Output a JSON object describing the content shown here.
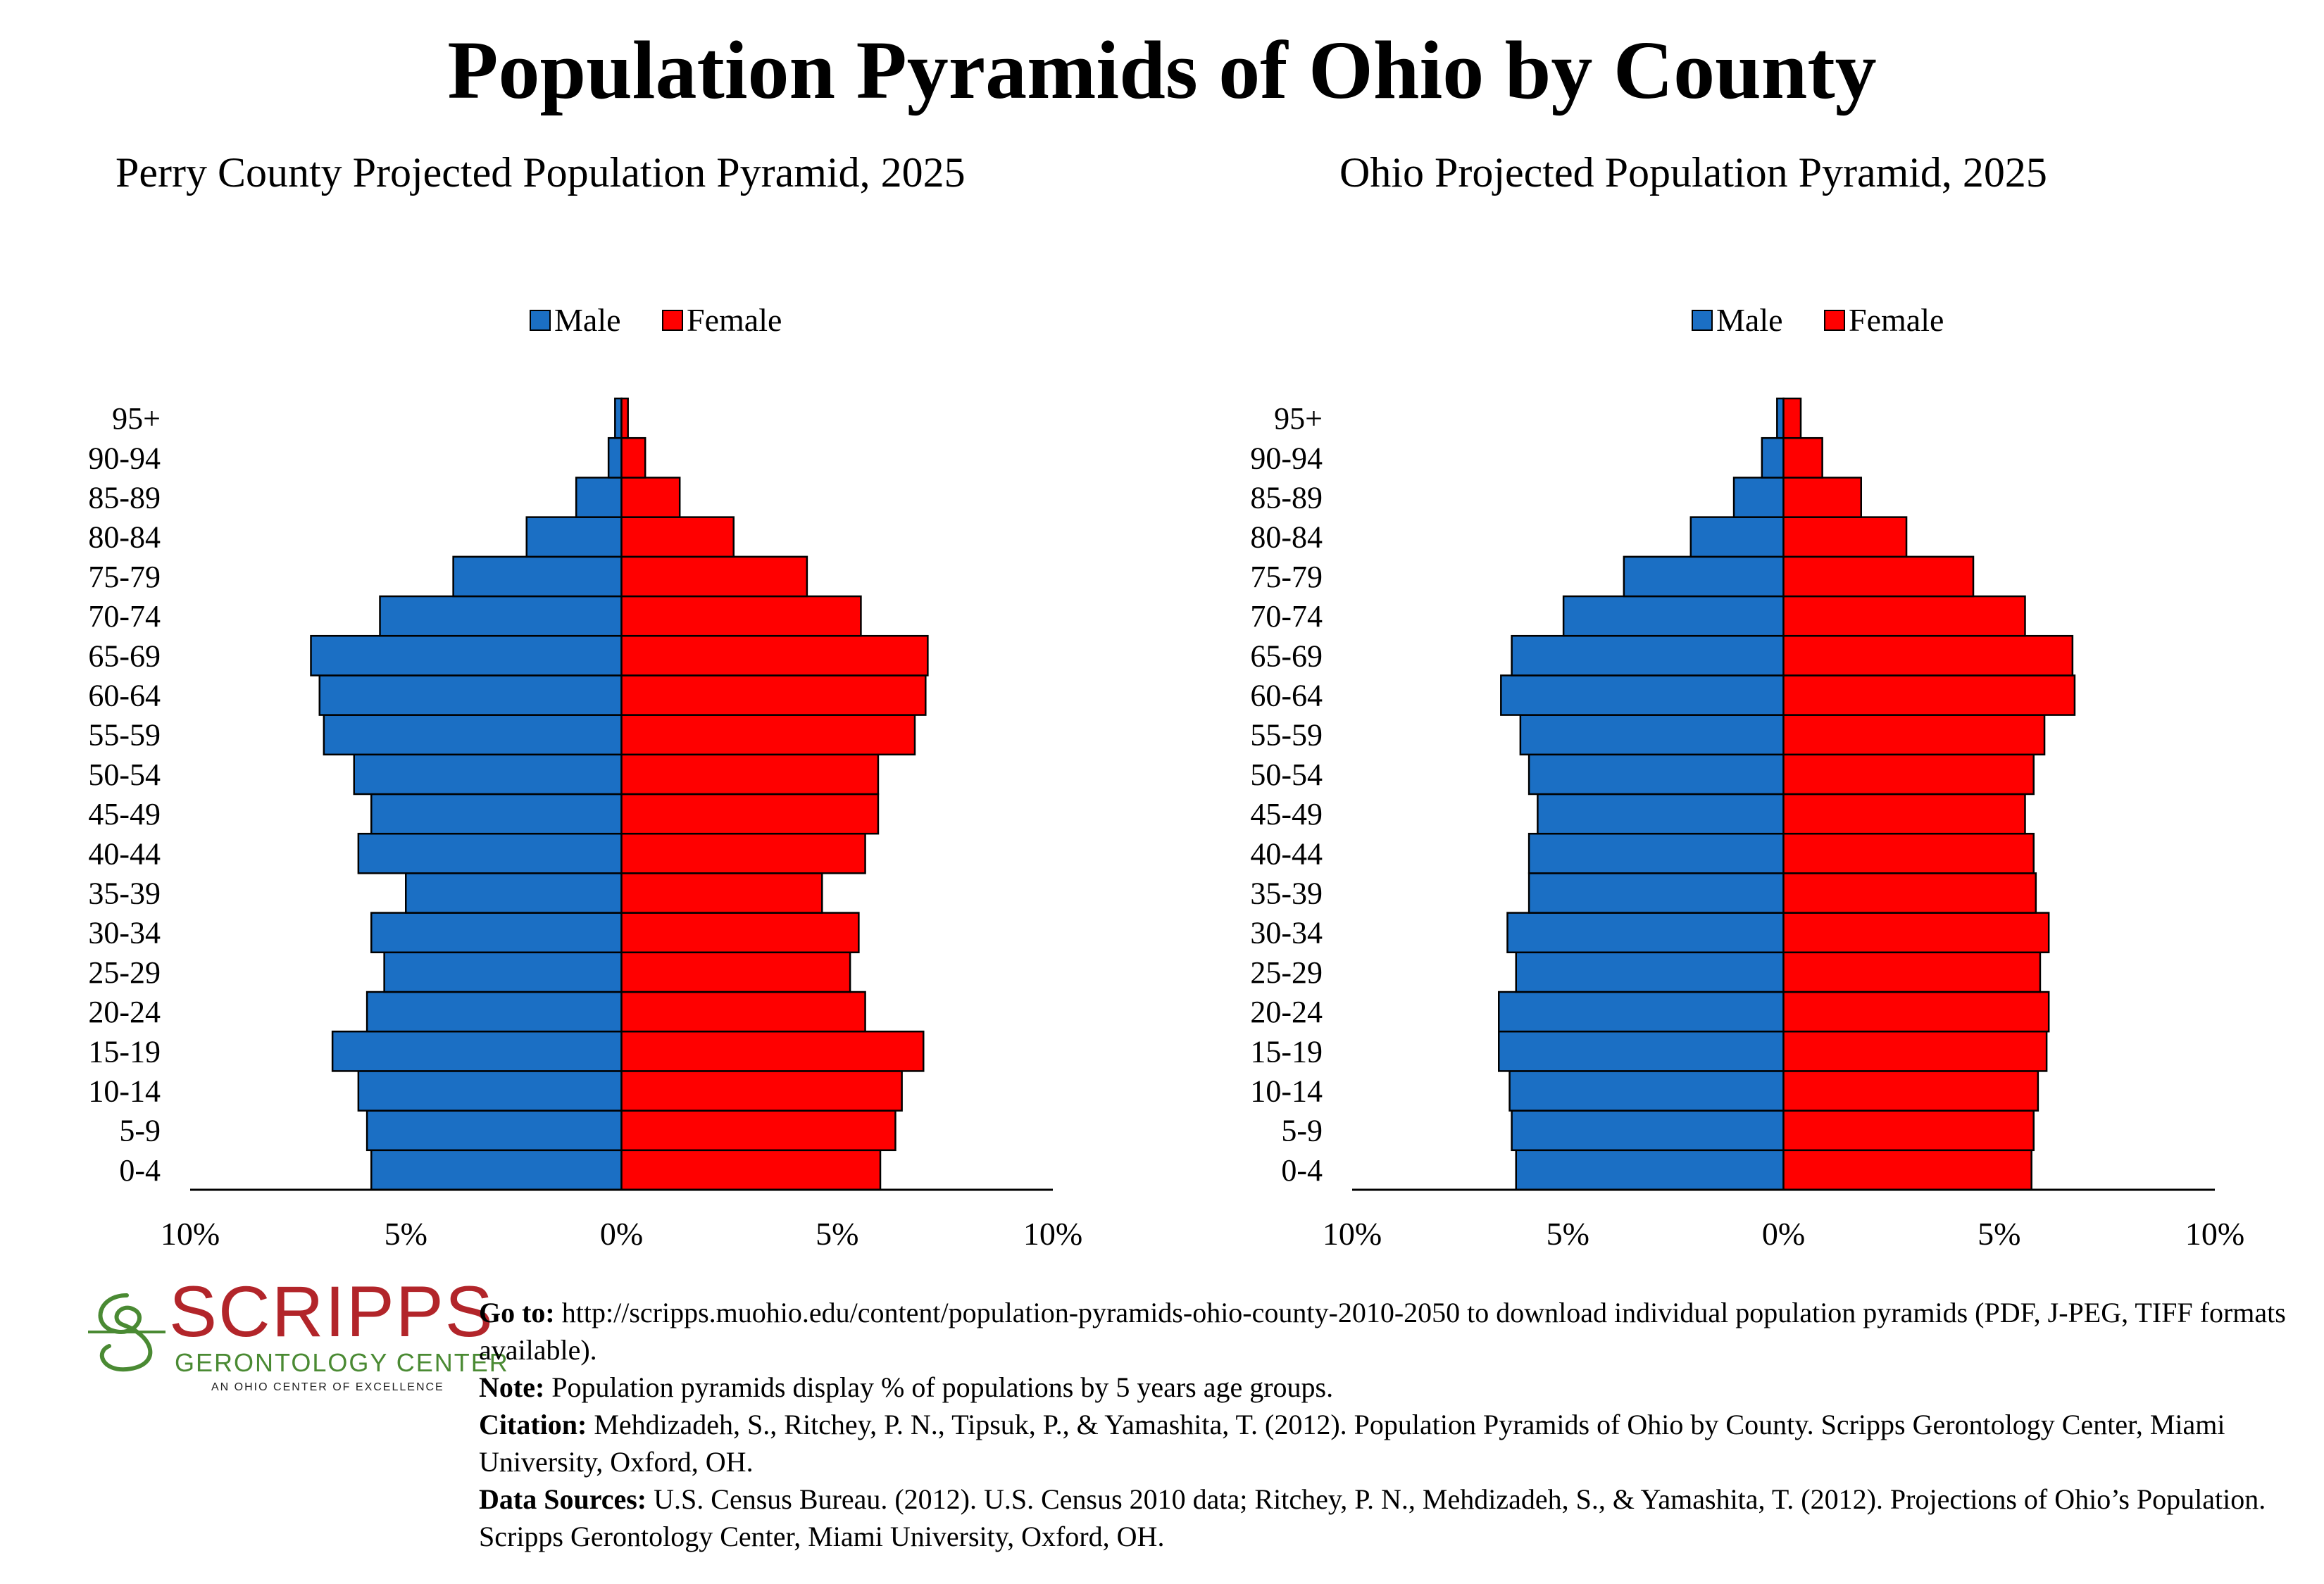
{
  "main_title": "Population Pyramids of Ohio by County",
  "colors": {
    "male": "#1b6fc4",
    "female": "#ff0000"
  },
  "chart_data": [
    {
      "type": "bar",
      "orientation": "horizontal-population-pyramid",
      "title": "Perry County Projected Population Pyramid, 2025",
      "categories": [
        "0-4",
        "5-9",
        "10-14",
        "15-19",
        "20-24",
        "25-29",
        "30-34",
        "35-39",
        "40-44",
        "45-49",
        "50-54",
        "55-59",
        "60-64",
        "65-69",
        "70-74",
        "75-79",
        "80-84",
        "85-89",
        "90-94",
        "95+"
      ],
      "series": [
        {
          "name": "Male",
          "values": [
            5.8,
            5.9,
            6.1,
            6.7,
            5.9,
            5.5,
            5.8,
            5.0,
            6.1,
            5.8,
            6.2,
            6.9,
            7.0,
            7.2,
            5.6,
            3.9,
            2.2,
            1.05,
            0.3,
            0.15
          ]
        },
        {
          "name": "Female",
          "values": [
            6.0,
            6.35,
            6.5,
            7.0,
            5.65,
            5.3,
            5.5,
            4.65,
            5.65,
            5.95,
            5.95,
            6.8,
            7.05,
            7.1,
            5.55,
            4.3,
            2.6,
            1.35,
            0.55,
            0.15
          ]
        }
      ],
      "xlim": [
        -10,
        10
      ],
      "x_ticks": [
        "10%",
        "5%",
        "0%",
        "5%",
        "10%"
      ],
      "legend": [
        "Male",
        "Female"
      ],
      "legend_position": "top-center",
      "grid": false
    },
    {
      "type": "bar",
      "orientation": "horizontal-population-pyramid",
      "title": "Ohio Projected Population Pyramid, 2025",
      "categories": [
        "0-4",
        "5-9",
        "10-14",
        "15-19",
        "20-24",
        "25-29",
        "30-34",
        "35-39",
        "40-44",
        "45-49",
        "50-54",
        "55-59",
        "60-64",
        "65-69",
        "70-74",
        "75-79",
        "80-84",
        "85-89",
        "90-94",
        "95+"
      ],
      "series": [
        {
          "name": "Male",
          "values": [
            6.2,
            6.3,
            6.35,
            6.6,
            6.6,
            6.2,
            6.4,
            5.9,
            5.9,
            5.7,
            5.9,
            6.1,
            6.55,
            6.3,
            5.1,
            3.7,
            2.15,
            1.15,
            0.5,
            0.15
          ]
        },
        {
          "name": "Female",
          "values": [
            5.75,
            5.8,
            5.9,
            6.1,
            6.15,
            5.95,
            6.15,
            5.85,
            5.8,
            5.6,
            5.8,
            6.05,
            6.75,
            6.7,
            5.6,
            4.4,
            2.85,
            1.8,
            0.9,
            0.4
          ]
        }
      ],
      "xlim": [
        -10,
        10
      ],
      "x_ticks": [
        "10%",
        "5%",
        "0%",
        "5%",
        "10%"
      ],
      "legend": [
        "Male",
        "Female"
      ],
      "legend_position": "top-center",
      "grid": false
    }
  ],
  "logo": {
    "wordmark": "SCRIPPS",
    "subtitle": "GERONTOLOGY CENTER",
    "tagline": "AN OHIO CENTER OF EXCELLENCE"
  },
  "notes": {
    "goto_label": "Go to:",
    "goto_text": " http://scripps.muohio.edu/content/population-pyramids-ohio-county-2010-2050 to download individual population pyramids (PDF, J-PEG, TIFF formats available).",
    "note_label": "Note:",
    "note_text": " Population pyramids display % of populations by 5 years age groups.",
    "citation_label": "Citation:",
    "citation_text": " Mehdizadeh, S., Ritchey, P. N., Tipsuk, P., & Yamashita, T. (2012). Population Pyramids of Ohio by County. Scripps Gerontology Center, Miami University, Oxford, OH.",
    "sources_label": "Data Sources:",
    "sources_text": " U.S. Census Bureau. (2012). U.S. Census 2010 data; Ritchey, P. N., Mehdizadeh, S., & Yamashita, T. (2012). Projections of Ohio’s Population. Scripps Gerontology Center, Miami University, Oxford, OH."
  }
}
